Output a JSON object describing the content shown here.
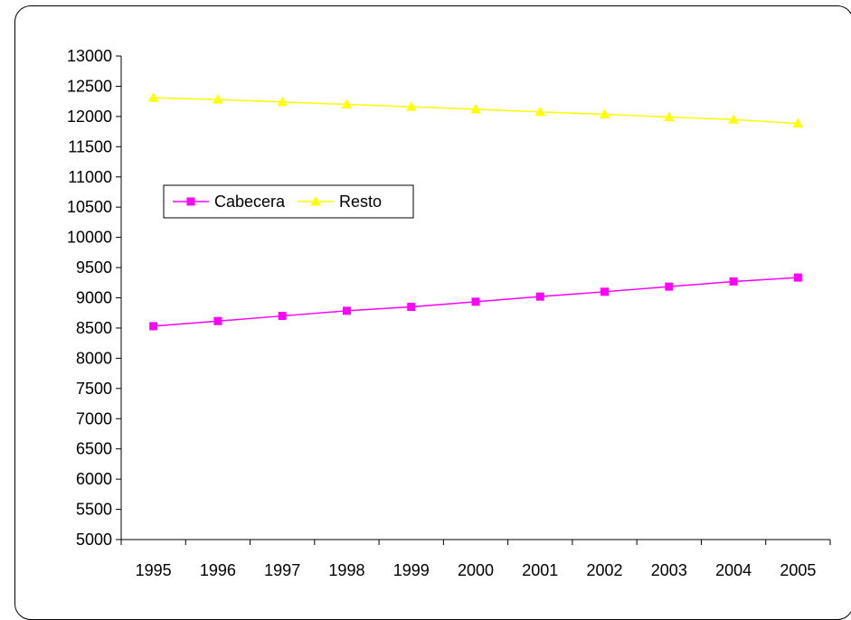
{
  "chart_data": {
    "type": "line",
    "title": "",
    "xlabel": "",
    "ylabel": "",
    "categories": [
      "1995",
      "1996",
      "1997",
      "1998",
      "1999",
      "2000",
      "2001",
      "2002",
      "2003",
      "2004",
      "2005"
    ],
    "ylim": [
      5000,
      13000
    ],
    "yticks": [
      "5000",
      "5500",
      "6000",
      "6500",
      "7000",
      "7500",
      "8000",
      "8500",
      "9000",
      "9500",
      "10000",
      "10500",
      "11000",
      "11500",
      "12000",
      "12500",
      "13000"
    ],
    "grid": false,
    "legend_position": "left",
    "series": [
      {
        "name": "Cabecera",
        "color": "#FF00FF",
        "marker": "square",
        "values": [
          8530,
          8615,
          8700,
          8785,
          8850,
          8935,
          9020,
          9100,
          9185,
          9270,
          9335
        ]
      },
      {
        "name": "Resto",
        "color": "#FFFF00",
        "marker": "triangle",
        "values": [
          12310,
          12280,
          12240,
          12200,
          12160,
          12120,
          12075,
          12035,
          11990,
          11950,
          11885
        ]
      }
    ]
  }
}
